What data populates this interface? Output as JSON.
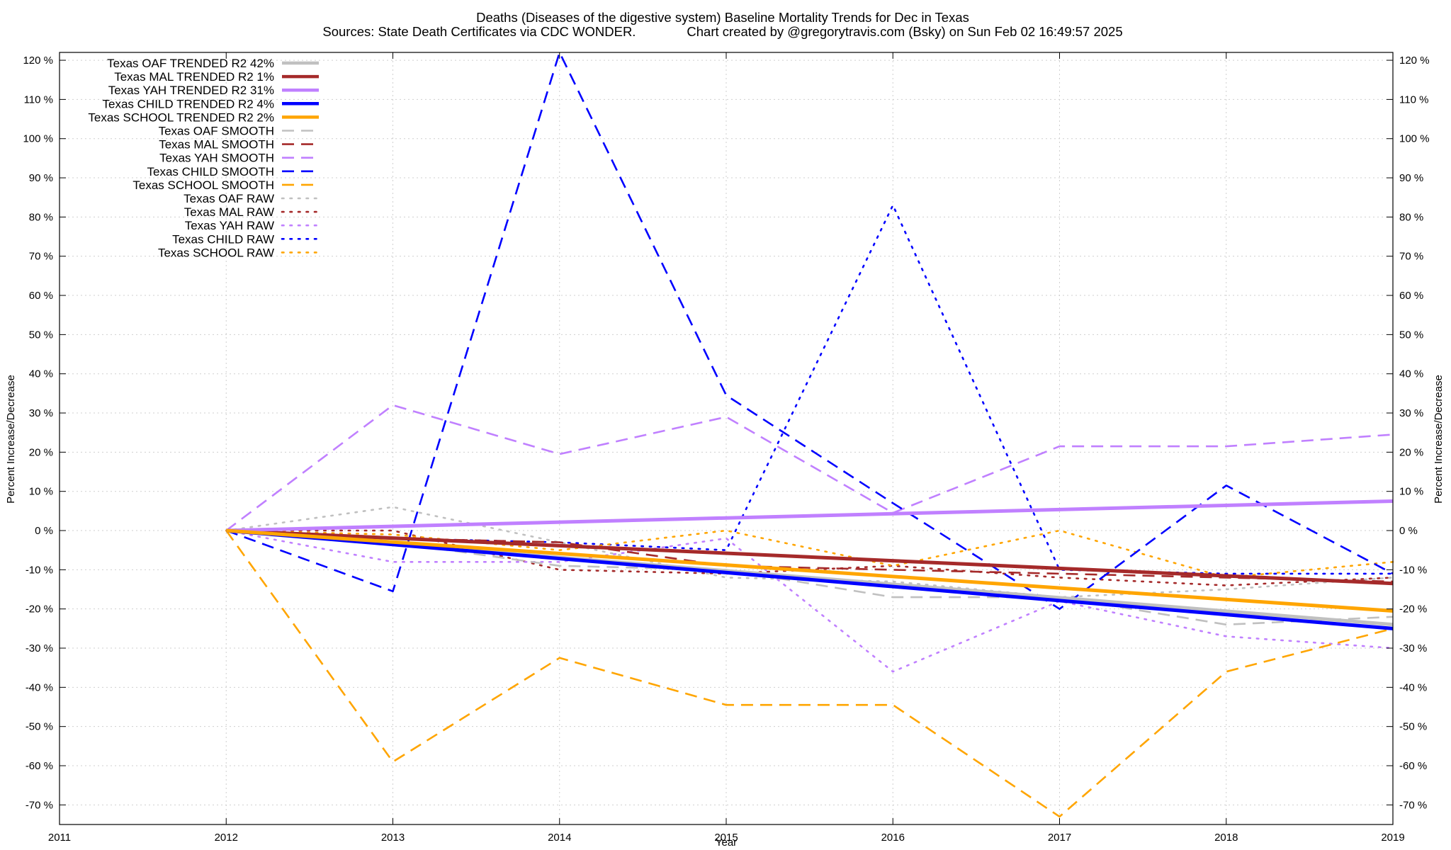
{
  "chart_data": {
    "type": "line",
    "title": "Deaths (Diseases of the digestive system)  Baseline Mortality Trends for Dec in Texas",
    "subtitle": "Sources: State Death Certificates via CDC WONDER.              Chart created by @gregorytravis.com (Bsky) on Sun Feb 02 16:49:57 2025",
    "xlabel": "Year",
    "ylabel": "Percent Increase/Decrease",
    "ylabel_right": "Percent Increase/Decrease",
    "xlim": [
      2011,
      2019
    ],
    "ylim": [
      -75,
      122
    ],
    "x_ticks": [
      2011,
      2012,
      2013,
      2014,
      2015,
      2016,
      2017,
      2018,
      2019
    ],
    "x_tick_labels": [
      "2011",
      "2012",
      "2013",
      "2014",
      "2015",
      "2016",
      "2017",
      "2018",
      "2019"
    ],
    "y_ticks": [
      -70,
      -60,
      -50,
      -40,
      -30,
      -20,
      -10,
      0,
      10,
      20,
      30,
      40,
      50,
      60,
      70,
      80,
      90,
      100,
      110,
      120
    ],
    "y_tick_labels": [
      "-70 %",
      "-60 %",
      "-50 %",
      "-40 %",
      "-30 %",
      "-20 %",
      "-10 %",
      "0 %",
      "10 %",
      "20 %",
      "30 %",
      "40 %",
      "50 %",
      "60 %",
      "70 %",
      "80 %",
      "90 %",
      "100 %",
      "110 %",
      "120 %"
    ],
    "grid": true,
    "legend_position": "top-left",
    "colors": {
      "OAF": "#c0c0c0",
      "MAL": "#a52a2a",
      "YAH": "#c080ff",
      "CHILD": "#0000ff",
      "SCHOOL": "#ffa500"
    },
    "series": [
      {
        "name": "Texas OAF TRENDED R2  42%",
        "group": "OAF",
        "style": "solid",
        "x": [
          2012,
          2019
        ],
        "y": [
          0,
          -24
        ]
      },
      {
        "name": "Texas MAL TRENDED R2   1%",
        "group": "MAL",
        "style": "solid",
        "x": [
          2012,
          2019
        ],
        "y": [
          0,
          -13.5
        ]
      },
      {
        "name": "Texas YAH TRENDED R2  31%",
        "group": "YAH",
        "style": "solid",
        "x": [
          2012,
          2019
        ],
        "y": [
          0,
          7.5
        ]
      },
      {
        "name": "Texas CHILD TRENDED R2   4%",
        "group": "CHILD",
        "style": "solid",
        "x": [
          2012,
          2019
        ],
        "y": [
          0,
          -25
        ]
      },
      {
        "name": "Texas SCHOOL TRENDED R2   2%",
        "group": "SCHOOL",
        "style": "solid",
        "x": [
          2012,
          2019
        ],
        "y": [
          0,
          -20.5
        ]
      },
      {
        "name": "Texas OAF SMOOTH",
        "group": "OAF",
        "style": "dashed",
        "x": [
          2012,
          2013,
          2014,
          2015,
          2016,
          2017,
          2018,
          2019
        ],
        "y": [
          0,
          -3,
          -9,
          -10,
          -17,
          -17,
          -24,
          -22
        ]
      },
      {
        "name": "Texas MAL SMOOTH",
        "group": "MAL",
        "style": "dashed",
        "x": [
          2012,
          2013,
          2014,
          2015,
          2016,
          2017,
          2018,
          2019
        ],
        "y": [
          0,
          -2,
          -3,
          -9,
          -10,
          -11,
          -12,
          -13
        ]
      },
      {
        "name": "Texas YAH SMOOTH",
        "group": "YAH",
        "style": "dashed",
        "x": [
          2012,
          2013,
          2014,
          2015,
          2016,
          2017,
          2018,
          2019
        ],
        "y": [
          0,
          32,
          19.5,
          29,
          4.5,
          21.5,
          21.5,
          24.5
        ]
      },
      {
        "name": "Texas CHILD SMOOTH",
        "group": "CHILD",
        "style": "dashed",
        "x": [
          2012,
          2013,
          2014,
          2015,
          2016,
          2017,
          2018,
          2019
        ],
        "y": [
          0,
          -15.5,
          122,
          34.5,
          7,
          -20,
          11.5,
          -11
        ]
      },
      {
        "name": "Texas SCHOOL SMOOTH",
        "group": "SCHOOL",
        "style": "dashed",
        "x": [
          2012,
          2013,
          2014,
          2015,
          2016,
          2017,
          2018,
          2019
        ],
        "y": [
          0,
          -59,
          -32.5,
          -44.5,
          -44.5,
          -73,
          -36,
          -25
        ]
      },
      {
        "name": "Texas OAF RAW",
        "group": "OAF",
        "style": "dotted",
        "x": [
          2012,
          2013,
          2014,
          2015,
          2016,
          2017,
          2018,
          2019
        ],
        "y": [
          0,
          6,
          -3,
          -12,
          -13,
          -17,
          -15,
          -12
        ]
      },
      {
        "name": "Texas MAL RAW",
        "group": "MAL",
        "style": "dotted",
        "x": [
          2012,
          2013,
          2014,
          2015,
          2016,
          2017,
          2018,
          2019
        ],
        "y": [
          0,
          0,
          -10,
          -11,
          -9,
          -12,
          -14,
          -12
        ]
      },
      {
        "name": "Texas YAH RAW",
        "group": "YAH",
        "style": "dotted",
        "x": [
          2012,
          2013,
          2014,
          2015,
          2016,
          2017,
          2018,
          2019
        ],
        "y": [
          0,
          -8,
          -8,
          -2,
          -36,
          -18,
          -27,
          -30
        ]
      },
      {
        "name": "Texas CHILD RAW",
        "group": "CHILD",
        "style": "dotted",
        "x": [
          2012,
          2013,
          2014,
          2015,
          2016,
          2017,
          2018,
          2019
        ],
        "y": [
          0,
          -2,
          -3,
          -5,
          83,
          -10,
          -11,
          -11
        ]
      },
      {
        "name": "Texas SCHOOL RAW",
        "group": "SCHOOL",
        "style": "dotted",
        "x": [
          2012,
          2013,
          2014,
          2015,
          2016,
          2017,
          2018,
          2019
        ],
        "y": [
          0,
          -1,
          -5,
          0,
          -9,
          0,
          -12,
          -8
        ]
      }
    ]
  }
}
